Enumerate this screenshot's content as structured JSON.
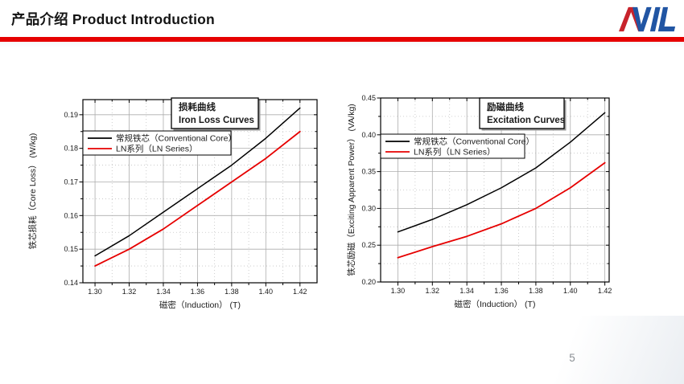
{
  "header": {
    "title_cn": "产品介绍",
    "title_en": "Product Introduction",
    "accent_color": "#e60000"
  },
  "logo": {
    "text": "AVIL",
    "red": "#c8232c",
    "blue": "#2155a3"
  },
  "footer": {
    "page_number": "5"
  },
  "chart_data": [
    {
      "type": "line",
      "title": "损耗曲线",
      "title_en": "Iron Loss Curves",
      "xlabel": "磁密（Induction） (T)",
      "ylabel": "铁芯损耗（Core Loss） (W/kg)",
      "x": [
        1.3,
        1.32,
        1.34,
        1.36,
        1.38,
        1.4,
        1.42
      ],
      "xticks": [
        1.3,
        1.32,
        1.34,
        1.36,
        1.38,
        1.4,
        1.42
      ],
      "yticks": [
        0.14,
        0.15,
        0.16,
        0.17,
        0.18,
        0.19
      ],
      "xlim": [
        1.2929,
        1.43
      ],
      "ylim": [
        0.14,
        0.1945
      ],
      "x_minor_step": 0.01,
      "y_minor_step": 0.005,
      "tick_decimals": 2,
      "grid": true,
      "legend_position": "upper-left-inside",
      "series": [
        {
          "name": "常规铁芯（Conventional Core）",
          "color": "#000000",
          "values": [
            0.148,
            0.154,
            0.161,
            0.168,
            0.175,
            0.183,
            0.192
          ]
        },
        {
          "name": "LN系列（LN Series）",
          "color": "#e60000",
          "values": [
            0.145,
            0.15,
            0.156,
            0.163,
            0.17,
            0.177,
            0.185
          ]
        }
      ]
    },
    {
      "type": "line",
      "title": "励磁曲线",
      "title_en": "Excitation Curves",
      "xlabel": "磁密（Induction） (T)",
      "ylabel": "铁芯励磁（Exciting Apparent Power） (VA/kg)",
      "x": [
        1.3,
        1.32,
        1.34,
        1.36,
        1.38,
        1.4,
        1.42
      ],
      "xticks": [
        1.3,
        1.32,
        1.34,
        1.36,
        1.38,
        1.4,
        1.42
      ],
      "yticks": [
        0.2,
        0.25,
        0.3,
        0.35,
        0.4,
        0.45
      ],
      "xlim": [
        1.29,
        1.4225
      ],
      "ylim": [
        0.2,
        0.45
      ],
      "x_minor_step": 0.01,
      "y_minor_step": 0.025,
      "tick_decimals": 2,
      "grid": true,
      "legend_position": "upper-left-inside",
      "series": [
        {
          "name": "常规铁芯（Conventional Core）",
          "color": "#000000",
          "values": [
            0.268,
            0.285,
            0.305,
            0.328,
            0.355,
            0.39,
            0.43
          ]
        },
        {
          "name": "LN系列（LN Series）",
          "color": "#e60000",
          "values": [
            0.233,
            0.248,
            0.262,
            0.279,
            0.3,
            0.328,
            0.362
          ]
        }
      ]
    }
  ]
}
